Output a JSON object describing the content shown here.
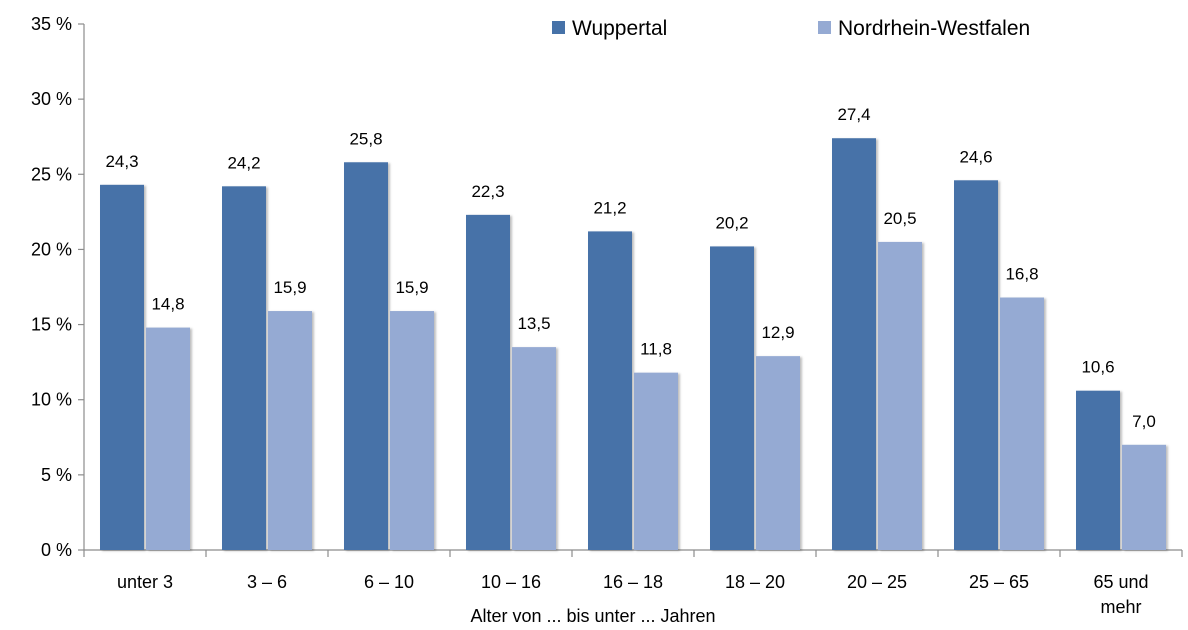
{
  "chart_data": {
    "type": "bar",
    "title": "",
    "xlabel": "Alter von ... bis unter ... Jahren",
    "ylabel": "",
    "ylim": [
      0,
      35
    ],
    "yticks": [
      0,
      5,
      10,
      15,
      20,
      25,
      30,
      35
    ],
    "ytick_labels": [
      "0 %",
      "5 %",
      "10 %",
      "15 %",
      "20 %",
      "25 %",
      "30 %",
      "35 %"
    ],
    "categories": [
      "unter 3",
      "3 –  6",
      "6 – 10",
      "10 – 16",
      "16 – 18",
      "18 – 20",
      "20 – 25",
      "25 – 65",
      "65 und mehr"
    ],
    "category_lines": [
      [
        "unter 3"
      ],
      [
        "3 –  6"
      ],
      [
        "6 – 10"
      ],
      [
        "10 – 16"
      ],
      [
        "16 – 18"
      ],
      [
        "18 – 20"
      ],
      [
        "20 – 25"
      ],
      [
        "25 – 65"
      ],
      [
        "65 und",
        "mehr"
      ]
    ],
    "series": [
      {
        "name": "Wuppertal",
        "color": "#4672a8",
        "values": [
          24.3,
          24.2,
          25.8,
          22.3,
          21.2,
          20.2,
          27.4,
          24.6,
          10.6
        ],
        "labels": [
          "24,3",
          "24,2",
          "25,8",
          "22,3",
          "21,2",
          "20,2",
          "27,4",
          "24,6",
          "10,6"
        ]
      },
      {
        "name": "Nordrhein-Westfalen",
        "color": "#95aad3",
        "values": [
          14.8,
          15.9,
          15.9,
          13.5,
          11.8,
          12.9,
          20.5,
          16.8,
          7.0
        ],
        "labels": [
          "14,8",
          "15,9",
          "15,9",
          "13,5",
          "11,8",
          "12,9",
          "20,5",
          "16,8",
          "7,0"
        ]
      }
    ],
    "legend": "top-right",
    "grid": false
  }
}
